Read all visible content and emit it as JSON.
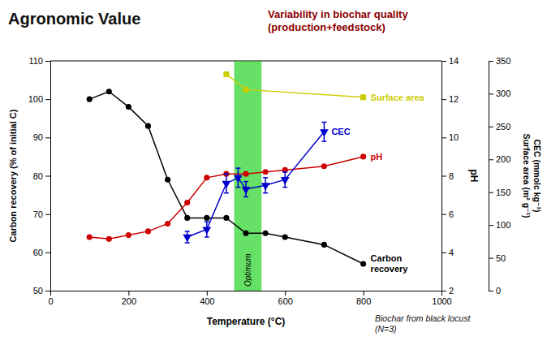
{
  "chart_data": {
    "type": "line",
    "title": "Agronomic Value",
    "subtitle": "Variability in biochar quality\n(production+feedstock)",
    "x_label": "Temperature (°C)",
    "y_label": "Carbon recovery (% of initial C)",
    "y2_label": "pH",
    "y3_label": "CEC (mmolc kg⁻¹)\nSurface area (m² g⁻¹)",
    "note": "Biochar from black locust\n(N=3)",
    "xlim": [
      0,
      1000
    ],
    "xticks": [
      0,
      200,
      400,
      600,
      800,
      1000
    ],
    "ylim": [
      50,
      110
    ],
    "yticks": [
      50,
      60,
      70,
      80,
      90,
      100,
      110
    ],
    "y2lim": [
      2,
      14
    ],
    "y2ticks": [
      2,
      4,
      6,
      8,
      10,
      12,
      14
    ],
    "y3lim": [
      0,
      350
    ],
    "y3ticks": [
      0,
      50,
      100,
      150,
      200,
      250,
      300,
      350
    ],
    "grid": false,
    "annotations": [
      {
        "text": "Optimum",
        "x_range": [
          470,
          540
        ],
        "color": "#00cc00"
      }
    ],
    "series": [
      {
        "name": "Carbon\nrecovery",
        "color": "#000000",
        "marker": "circle",
        "x": [
          100,
          150,
          200,
          250,
          300,
          350,
          400,
          450,
          500,
          550,
          600,
          700,
          800
        ],
        "values": [
          100,
          102,
          98,
          93,
          79,
          69,
          69,
          69,
          65,
          65,
          64,
          62,
          57
        ]
      },
      {
        "name": "pH",
        "color": "#cc0000",
        "marker": "circle",
        "axis": "y2",
        "x": [
          100,
          150,
          200,
          250,
          300,
          350,
          400,
          450,
          500,
          550,
          600,
          700,
          800
        ],
        "values": [
          4.8,
          4.7,
          4.9,
          5.1,
          5.5,
          6.6,
          7.9,
          8.1,
          8.1,
          8.2,
          8.3,
          8.5,
          9.0
        ]
      },
      {
        "name": "CEC",
        "color": "#0000cc",
        "marker": "triangle-down",
        "axis": "y2",
        "x": [
          350,
          400,
          450,
          480,
          500,
          550,
          600,
          700
        ],
        "values": [
          4.8,
          5.2,
          7.6,
          7.9,
          7.3,
          7.5,
          7.8,
          10.3
        ],
        "errors": [
          0.3,
          0.4,
          0.5,
          0.5,
          0.4,
          0.4,
          0.4,
          0.5
        ]
      },
      {
        "name": "Surface area",
        "color": "#cccc00",
        "marker": "square",
        "axis": "y2",
        "x": [
          450,
          500,
          800
        ],
        "values": [
          13.3,
          12.5,
          12.1
        ]
      }
    ]
  }
}
